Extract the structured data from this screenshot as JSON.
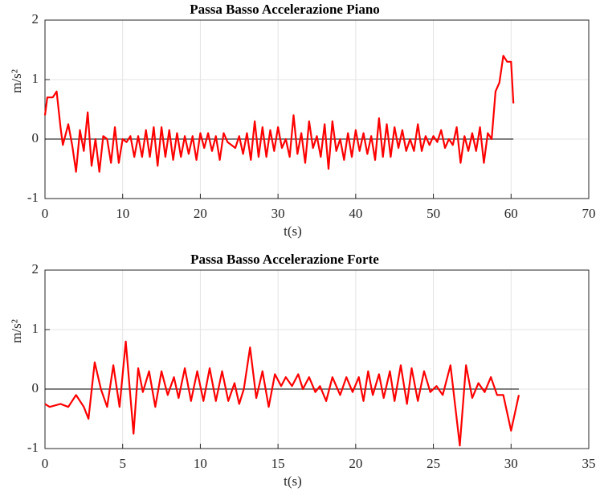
{
  "chart_data": [
    {
      "type": "line",
      "title": "Passa Basso Accelerazione Piano",
      "xlabel": "t(s)",
      "ylabel": "m/s²",
      "color": "#ff0000",
      "grid": true,
      "xlim": [
        0,
        70
      ],
      "ylim": [
        -1,
        2
      ],
      "xticks": [
        0,
        10,
        20,
        30,
        40,
        50,
        60,
        70
      ],
      "yticks": [
        -1,
        0,
        1,
        2
      ],
      "x": [
        0,
        0.3,
        1,
        1.5,
        2,
        2.3,
        3,
        3.5,
        4,
        4.5,
        5,
        5.5,
        6,
        6.5,
        7,
        7.5,
        8,
        8.5,
        9,
        9.5,
        10,
        10.5,
        11,
        11.5,
        12,
        12.5,
        13,
        13.5,
        14,
        14.5,
        15,
        15.5,
        16,
        16.5,
        17,
        17.5,
        18,
        18.5,
        19,
        19.5,
        20,
        20.5,
        21,
        21.5,
        22,
        22.5,
        23,
        23.5,
        24,
        24.5,
        25,
        25.5,
        26,
        26.5,
        27,
        27.5,
        28,
        28.5,
        29,
        29.5,
        30,
        30.5,
        31,
        31.5,
        32,
        32.5,
        33,
        33.5,
        34,
        34.5,
        35,
        35.5,
        36,
        36.5,
        37,
        37.5,
        38,
        38.5,
        39,
        39.5,
        40,
        40.5,
        41,
        41.5,
        42,
        42.5,
        43,
        43.5,
        44,
        44.5,
        45,
        45.5,
        46,
        46.5,
        47,
        47.5,
        48,
        48.5,
        49,
        49.5,
        50,
        50.5,
        51,
        51.5,
        52,
        52.5,
        53,
        53.5,
        54,
        54.5,
        55,
        55.5,
        56,
        56.5,
        57,
        57.5,
        58,
        58.5,
        59,
        59.5,
        60,
        60.3
      ],
      "values": [
        0.4,
        0.7,
        0.7,
        0.8,
        0.2,
        -0.1,
        0.25,
        -0.1,
        -0.55,
        0.15,
        -0.2,
        0.45,
        -0.45,
        0,
        -0.55,
        0.05,
        0,
        -0.4,
        0.2,
        -0.4,
        0,
        -0.05,
        0.05,
        -0.3,
        0.05,
        -0.3,
        0.15,
        -0.3,
        0.2,
        -0.45,
        0.2,
        -0.3,
        0.15,
        -0.35,
        0.1,
        -0.3,
        0.05,
        -0.25,
        0.05,
        -0.35,
        0.1,
        -0.15,
        0.1,
        -0.2,
        0.05,
        -0.35,
        0.1,
        -0.05,
        -0.1,
        -0.15,
        0.05,
        -0.25,
        0.1,
        -0.35,
        0.3,
        -0.3,
        0.2,
        -0.3,
        0.15,
        -0.2,
        0.2,
        -0.15,
        0,
        -0.3,
        0.4,
        -0.25,
        0.1,
        -0.4,
        0.3,
        -0.15,
        0.05,
        -0.3,
        0.25,
        -0.5,
        0.3,
        -0.2,
        0,
        -0.35,
        0.1,
        -0.3,
        0.15,
        -0.2,
        0.1,
        -0.25,
        0.05,
        -0.35,
        0.35,
        -0.3,
        0.25,
        -0.3,
        0.2,
        -0.15,
        0.15,
        -0.2,
        0,
        -0.2,
        0.25,
        -0.2,
        0.05,
        -0.1,
        0.05,
        -0.05,
        0.15,
        -0.15,
        0,
        -0.1,
        0.2,
        -0.4,
        0.05,
        -0.2,
        0.1,
        -0.2,
        0.2,
        -0.4,
        0.1,
        0,
        0.8,
        0.95,
        1.4,
        1.3,
        1.3,
        0.6
      ]
    },
    {
      "type": "line",
      "title": "Passa Basso Accelerazione Forte",
      "xlabel": "t(s)",
      "ylabel": "m/s²",
      "color": "#ff0000",
      "grid": true,
      "xlim": [
        0,
        35
      ],
      "ylim": [
        -1,
        2
      ],
      "xticks": [
        0,
        5,
        10,
        15,
        20,
        25,
        30,
        35
      ],
      "yticks": [
        -1,
        0,
        1,
        2
      ],
      "x": [
        0,
        0.3,
        1,
        1.5,
        2,
        2.5,
        2.8,
        3.2,
        3.6,
        4,
        4.4,
        4.8,
        5.2,
        5.7,
        6,
        6.3,
        6.7,
        7.1,
        7.5,
        7.9,
        8.3,
        8.6,
        9,
        9.4,
        9.8,
        10.2,
        10.6,
        11,
        11.4,
        11.8,
        12.2,
        12.5,
        12.8,
        13.2,
        13.6,
        14,
        14.4,
        14.8,
        15.2,
        15.5,
        15.9,
        16.3,
        16.6,
        17,
        17.4,
        17.7,
        18.1,
        18.5,
        19,
        19.4,
        19.8,
        20.2,
        20.5,
        20.8,
        21.1,
        21.5,
        21.8,
        22.2,
        22.5,
        22.9,
        23.3,
        23.6,
        24,
        24.4,
        24.8,
        25.2,
        25.6,
        26.1,
        26.7,
        27.1,
        27.5,
        27.9,
        28.3,
        28.7,
        29.1,
        29.5,
        30,
        30.5
      ],
      "values": [
        -0.25,
        -0.3,
        -0.25,
        -0.3,
        -0.1,
        -0.3,
        -0.5,
        0.45,
        0,
        -0.3,
        0.4,
        -0.3,
        0.8,
        -0.75,
        0.35,
        -0.05,
        0.3,
        -0.3,
        0.3,
        -0.1,
        0.2,
        -0.15,
        0.35,
        -0.2,
        0.3,
        -0.2,
        0.35,
        -0.2,
        0.3,
        -0.2,
        0.1,
        -0.25,
        0,
        0.7,
        -0.15,
        0.3,
        -0.3,
        0.25,
        0.05,
        0.2,
        0.05,
        0.25,
        0,
        0.2,
        -0.05,
        0.05,
        -0.2,
        0.2,
        -0.1,
        0.2,
        -0.05,
        0.2,
        -0.2,
        0.3,
        -0.1,
        0.25,
        -0.15,
        0.3,
        -0.2,
        0.4,
        -0.25,
        0.35,
        -0.2,
        0.3,
        -0.05,
        0.05,
        -0.1,
        0.4,
        -0.95,
        0.4,
        -0.15,
        0.1,
        -0.05,
        0.2,
        -0.1,
        -0.1,
        -0.7,
        -0.1
      ]
    }
  ]
}
